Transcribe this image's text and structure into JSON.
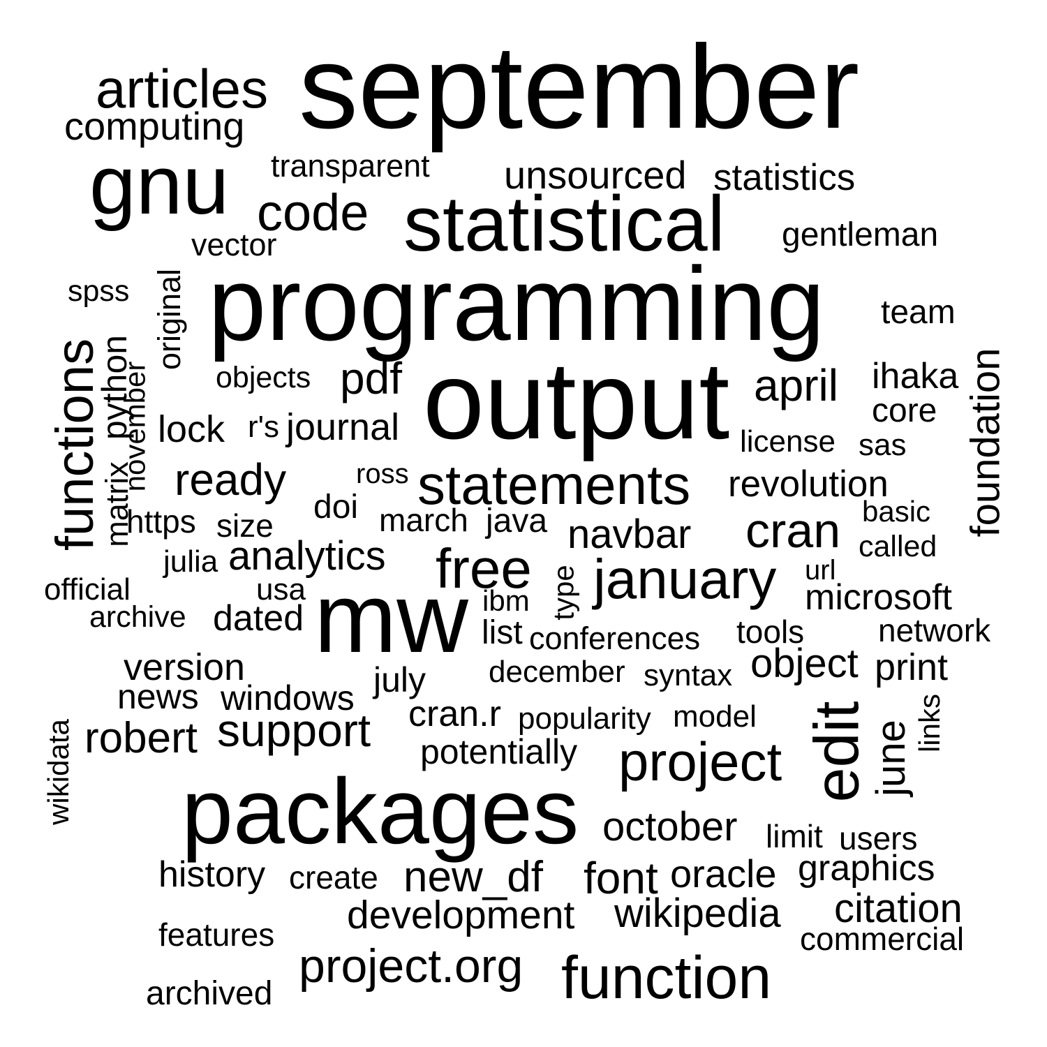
{
  "text_color": "#000000",
  "background_color": "#ffffff",
  "words": [
    {
      "text": "september"
    },
    {
      "text": "programming"
    },
    {
      "text": "output"
    },
    {
      "text": "packages"
    },
    {
      "text": "mw"
    },
    {
      "text": "statistical"
    },
    {
      "text": "gnu"
    },
    {
      "text": "articles"
    },
    {
      "text": "computing"
    },
    {
      "text": "transparent"
    },
    {
      "text": "unsourced"
    },
    {
      "text": "statistics"
    },
    {
      "text": "code"
    },
    {
      "text": "gentleman"
    },
    {
      "text": "vector"
    },
    {
      "text": "spss"
    },
    {
      "text": "original"
    },
    {
      "text": "team"
    },
    {
      "text": "functions"
    },
    {
      "text": "python"
    },
    {
      "text": "november"
    },
    {
      "text": "matrix"
    },
    {
      "text": "objects"
    },
    {
      "text": "pdf"
    },
    {
      "text": "april"
    },
    {
      "text": "ihaka"
    },
    {
      "text": "core"
    },
    {
      "text": "foundation"
    },
    {
      "text": "lock"
    },
    {
      "text": "r's"
    },
    {
      "text": "journal"
    },
    {
      "text": "license"
    },
    {
      "text": "sas"
    },
    {
      "text": "ready"
    },
    {
      "text": "ross"
    },
    {
      "text": "statements"
    },
    {
      "text": "revolution"
    },
    {
      "text": "doi"
    },
    {
      "text": "https"
    },
    {
      "text": "size"
    },
    {
      "text": "march"
    },
    {
      "text": "java"
    },
    {
      "text": "navbar"
    },
    {
      "text": "cran"
    },
    {
      "text": "basic"
    },
    {
      "text": "called"
    },
    {
      "text": "julia"
    },
    {
      "text": "analytics"
    },
    {
      "text": "free"
    },
    {
      "text": "january"
    },
    {
      "text": "url"
    },
    {
      "text": "official"
    },
    {
      "text": "usa"
    },
    {
      "text": "type"
    },
    {
      "text": "ibm"
    },
    {
      "text": "microsoft"
    },
    {
      "text": "archive"
    },
    {
      "text": "dated"
    },
    {
      "text": "list"
    },
    {
      "text": "conferences"
    },
    {
      "text": "tools"
    },
    {
      "text": "network"
    },
    {
      "text": "version"
    },
    {
      "text": "object"
    },
    {
      "text": "print"
    },
    {
      "text": "december"
    },
    {
      "text": "syntax"
    },
    {
      "text": "news"
    },
    {
      "text": "windows"
    },
    {
      "text": "july"
    },
    {
      "text": "edit"
    },
    {
      "text": "cran.r"
    },
    {
      "text": "popularity"
    },
    {
      "text": "model"
    },
    {
      "text": "links"
    },
    {
      "text": "june"
    },
    {
      "text": "wikidata"
    },
    {
      "text": "robert"
    },
    {
      "text": "support"
    },
    {
      "text": "potentially"
    },
    {
      "text": "project"
    },
    {
      "text": "october"
    },
    {
      "text": "limit"
    },
    {
      "text": "users"
    },
    {
      "text": "history"
    },
    {
      "text": "create"
    },
    {
      "text": "new_df"
    },
    {
      "text": "font"
    },
    {
      "text": "oracle"
    },
    {
      "text": "graphics"
    },
    {
      "text": "development"
    },
    {
      "text": "wikipedia"
    },
    {
      "text": "citation"
    },
    {
      "text": "features"
    },
    {
      "text": "commercial"
    },
    {
      "text": "project.org"
    },
    {
      "text": "function"
    },
    {
      "text": "archived"
    }
  ]
}
